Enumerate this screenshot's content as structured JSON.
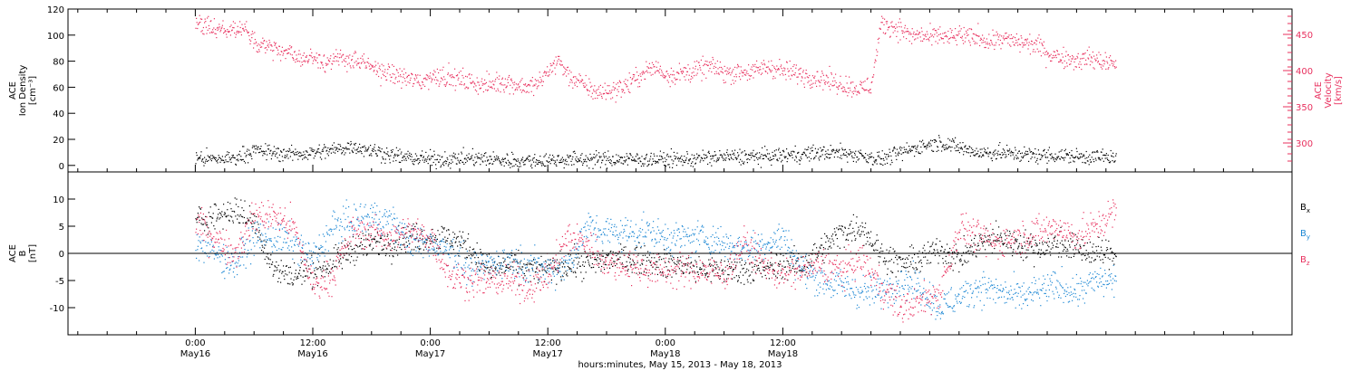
{
  "chart_data": [
    {
      "type": "scatter",
      "panel": "top",
      "ylabel_lines": [
        "ACE",
        "Ion Density",
        "[cm⁻³]"
      ],
      "y2label_lines": [
        "ACE",
        "Velocity",
        "[km/s]"
      ],
      "ylim": [
        -5,
        120
      ],
      "yticks": [
        0,
        20,
        40,
        60,
        80,
        100,
        120
      ],
      "y2lim": [
        260,
        485
      ],
      "y2ticks": [
        300,
        350,
        400,
        450
      ],
      "series": [
        {
          "axis": "right",
          "color": "#e8305e",
          "scatter": 7,
          "x": [
            0,
            1,
            2,
            3,
            4,
            5,
            6,
            7,
            8,
            9,
            10,
            11,
            12,
            13,
            14,
            15,
            16,
            17,
            18,
            19,
            20,
            21,
            22,
            23,
            24,
            25,
            26,
            27,
            28,
            29,
            30,
            31,
            32,
            33,
            34,
            35,
            36,
            37,
            38,
            39,
            40,
            41,
            42,
            43,
            44,
            45,
            46,
            47,
            48,
            49,
            50,
            51,
            52,
            53,
            54,
            55,
            56,
            57,
            58,
            59,
            60,
            61,
            62,
            63,
            64,
            65,
            66,
            67,
            68,
            69,
            70,
            71,
            72,
            73,
            74,
            75,
            76,
            77,
            78,
            79,
            80,
            81,
            82,
            83,
            84,
            85,
            86,
            87,
            88,
            89,
            90,
            91,
            92,
            93,
            94
          ],
          "values": [
            465,
            462,
            458,
            455,
            460,
            457,
            440,
            438,
            430,
            425,
            422,
            418,
            420,
            415,
            412,
            418,
            415,
            410,
            405,
            400,
            395,
            392,
            388,
            385,
            392,
            395,
            390,
            388,
            385,
            382,
            380,
            386,
            384,
            380,
            378,
            382,
            400,
            415,
            395,
            385,
            378,
            370,
            372,
            375,
            380,
            390,
            400,
            405,
            395,
            395,
            398,
            400,
            405,
            405,
            398,
            398,
            400,
            398,
            405,
            405,
            400,
            398,
            395,
            392,
            390,
            385,
            382,
            378,
            375,
            380,
            465,
            462,
            458,
            448,
            450,
            445,
            450,
            445,
            450,
            445,
            448,
            440,
            445,
            442,
            440,
            438,
            435,
            425,
            420,
            418,
            415,
            418,
            415,
            412,
            410
          ]
        },
        {
          "axis": "left",
          "color": "#000000",
          "scatter": 3,
          "x": [
            0,
            2,
            4,
            6,
            8,
            10,
            12,
            14,
            16,
            18,
            20,
            22,
            24,
            26,
            28,
            30,
            32,
            34,
            36,
            38,
            40,
            42,
            44,
            46,
            48,
            50,
            52,
            54,
            56,
            58,
            60,
            62,
            64,
            66,
            68,
            70,
            72,
            74,
            76,
            78,
            80,
            82,
            84,
            86,
            88,
            90,
            92,
            94
          ],
          "values": [
            6,
            5,
            6,
            12,
            10,
            9,
            10,
            12,
            15,
            12,
            8,
            6,
            5,
            5,
            6,
            5,
            4,
            4,
            4,
            5,
            5,
            5,
            5,
            5,
            5,
            5,
            6,
            7,
            7,
            7,
            8,
            9,
            10,
            10,
            8,
            5,
            10,
            15,
            18,
            14,
            10,
            10,
            9,
            8,
            8,
            7,
            7,
            6
          ]
        }
      ]
    },
    {
      "type": "line",
      "panel": "bottom",
      "ylabel_lines": [
        "ACE",
        "B",
        "[nT]"
      ],
      "ylim": [
        -15,
        15
      ],
      "yticks": [
        -10,
        -5,
        0,
        5,
        10
      ],
      "legend": [
        {
          "text": "B",
          "sub": "x",
          "color": "#000000"
        },
        {
          "text": "B",
          "sub": "y",
          "color": "#1e88d4"
        },
        {
          "text": "B",
          "sub": "z",
          "color": "#e8305e"
        }
      ],
      "series": [
        {
          "name": "Bx",
          "color": "#000000",
          "scatter": 1.3,
          "x": [
            0,
            2,
            4,
            6,
            8,
            10,
            12,
            14,
            16,
            18,
            20,
            22,
            24,
            26,
            28,
            30,
            32,
            34,
            36,
            38,
            40,
            42,
            44,
            46,
            48,
            50,
            52,
            54,
            56,
            58,
            60,
            62,
            64,
            66,
            68,
            70,
            72,
            74,
            76,
            78,
            80,
            82,
            84,
            86,
            88,
            90,
            92,
            94
          ],
          "values": [
            6,
            7,
            8,
            6,
            -3,
            -4,
            -3,
            -2,
            1,
            2,
            2,
            3,
            3,
            3,
            1,
            -3,
            -2,
            -3,
            -3,
            -2,
            -2,
            -1,
            -1,
            -1,
            -2,
            -2,
            -3,
            -3,
            -3,
            -3,
            -2,
            -2,
            1,
            4,
            5,
            0,
            -2,
            -1,
            1,
            -1,
            2,
            3,
            2,
            1,
            2,
            1,
            0,
            0
          ]
        },
        {
          "name": "By",
          "color": "#1e88d4",
          "scatter": 1.5,
          "x": [
            0,
            2,
            4,
            6,
            8,
            10,
            12,
            14,
            16,
            18,
            20,
            22,
            24,
            26,
            28,
            30,
            32,
            34,
            36,
            38,
            40,
            42,
            44,
            46,
            48,
            50,
            52,
            54,
            56,
            58,
            60,
            62,
            64,
            66,
            68,
            70,
            72,
            74,
            76,
            78,
            80,
            82,
            84,
            86,
            88,
            90,
            92,
            94
          ],
          "values": [
            2,
            0,
            -2,
            3,
            3,
            2,
            -1,
            5,
            6,
            7,
            6,
            2,
            2,
            1,
            -3,
            -2,
            -1,
            -2,
            -3,
            -2,
            5,
            4,
            4,
            4,
            3,
            3,
            3,
            2,
            1,
            2,
            3,
            -3,
            -5,
            -6,
            -7,
            -7,
            -5,
            -6,
            -10,
            -8,
            -6,
            -7,
            -8,
            -7,
            -6,
            -7,
            -5,
            -5
          ]
        },
        {
          "name": "Bz",
          "color": "#e8305e",
          "scatter": 1.5,
          "x": [
            0,
            2,
            4,
            6,
            8,
            10,
            12,
            14,
            16,
            18,
            20,
            22,
            24,
            26,
            28,
            30,
            32,
            34,
            36,
            38,
            40,
            42,
            44,
            46,
            48,
            50,
            52,
            54,
            56,
            58,
            60,
            62,
            64,
            66,
            68,
            70,
            72,
            74,
            76,
            78,
            80,
            82,
            84,
            86,
            88,
            90,
            92,
            94
          ],
          "values": [
            6,
            3,
            0,
            7,
            7,
            5,
            -6,
            -4,
            4,
            4,
            3,
            4,
            3,
            -4,
            -5,
            -5,
            -5,
            -6,
            -4,
            3,
            2,
            -2,
            -2,
            -3,
            -3,
            -3,
            -3,
            -4,
            2,
            -2,
            -4,
            -3,
            -2,
            -3,
            -1,
            -6,
            -10,
            -9,
            -7,
            5,
            3,
            2,
            3,
            4,
            5,
            3,
            5,
            8
          ]
        }
      ],
      "zero_line": true
    }
  ],
  "x_axis": {
    "xlim": [
      -13,
      112
    ],
    "ticks": [
      {
        "x": 0,
        "time": "0:00",
        "day": "May16"
      },
      {
        "x": 12,
        "time": "12:00",
        "day": "May16"
      },
      {
        "x": 24,
        "time": "0:00",
        "day": "May17"
      },
      {
        "x": 36,
        "time": "12:00",
        "day": "May17"
      },
      {
        "x": 48,
        "time": "0:00",
        "day": "May18"
      },
      {
        "x": 60,
        "time": "12:00",
        "day": "May18"
      }
    ],
    "xlabel": "hours:minutes, May 15, 2013 - May 18, 2013"
  }
}
